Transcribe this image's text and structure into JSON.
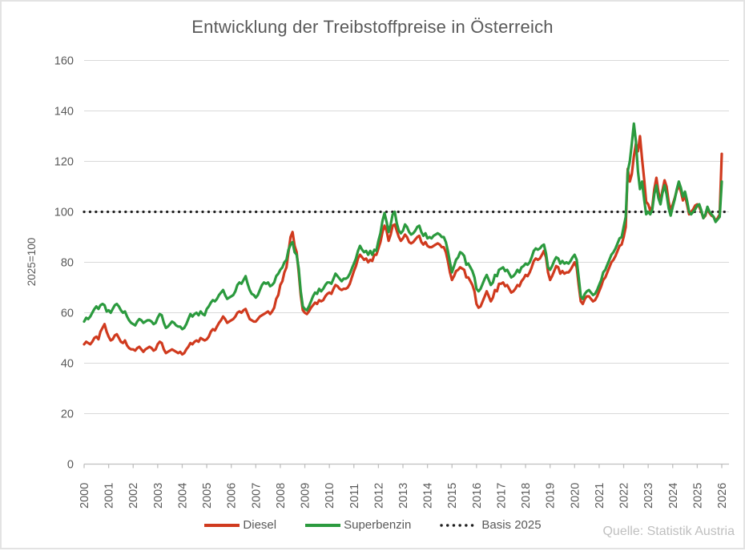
{
  "title": "Entwicklung der Treibstoffpreise in Österreich",
  "source_caption": "Quelle: Statistik Austria",
  "colors": {
    "diesel_red": "#d03a1e",
    "superbenzin_green": "#2b9a3e",
    "basis_black": "#1f1f1f",
    "gridline": "#d9d9d9",
    "axis_line": "#bfbfbf",
    "text_gray": "#595959",
    "source_gray": "#bfbfbf",
    "background": "#ffffff",
    "frame_border": "#e3e3e3"
  },
  "legend": {
    "items": [
      {
        "label": "Diesel"
      },
      {
        "label": "Superbenzin"
      },
      {
        "label": "Basis 2025"
      }
    ]
  },
  "chart_data": {
    "type": "line",
    "title": "Entwicklung der Treibstoffpreise in Österreich",
    "ylabel": "2025=100",
    "xlabel": "",
    "ylim": [
      0,
      160
    ],
    "yticks": [
      0,
      20,
      40,
      60,
      80,
      100,
      120,
      140,
      160
    ],
    "xticks": [
      2000,
      2001,
      2002,
      2003,
      2004,
      2005,
      2006,
      2007,
      2008,
      2009,
      2010,
      2011,
      2012,
      2013,
      2014,
      2015,
      2016,
      2017,
      2018,
      2019,
      2020,
      2021,
      2022,
      2023,
      2024,
      2025,
      2026
    ],
    "x_resolution": "monthly, Jan 2000 to Jan 2026",
    "grid": "horizontal",
    "legend_position": "bottom",
    "series": [
      {
        "name": "Diesel",
        "color": "#d03a1e",
        "values": [
          47.5,
          48.5,
          48,
          47.5,
          48.5,
          50,
          50.5,
          49.5,
          52.5,
          54,
          55.5,
          52.5,
          50.5,
          49,
          49.5,
          51,
          51.5,
          50,
          48.5,
          48,
          49,
          47,
          46,
          45.5,
          45.5,
          45,
          46,
          46.5,
          45.5,
          44.5,
          45.5,
          46,
          46.5,
          46,
          45,
          45.5,
          47.5,
          48.5,
          48,
          45.5,
          44,
          44.5,
          45,
          45.5,
          45,
          44.5,
          44,
          44.5,
          43.5,
          44,
          45.5,
          46.5,
          48,
          47.5,
          48.5,
          49,
          48.5,
          50,
          49.5,
          49,
          49.5,
          50.5,
          52.5,
          53.5,
          53,
          54.5,
          56,
          57,
          58.5,
          57.5,
          56,
          56.5,
          57,
          57.5,
          58.5,
          60,
          60.5,
          60,
          61,
          61.5,
          59.5,
          57.5,
          57,
          56.5,
          56.5,
          57.5,
          58.5,
          59,
          59.5,
          60,
          60.5,
          59.5,
          60.5,
          62,
          65.5,
          67,
          71,
          72.5,
          76,
          78,
          84,
          90,
          92,
          86.5,
          84,
          76,
          67,
          61,
          60,
          59.5,
          60.5,
          62,
          63,
          64,
          63.5,
          65,
          64.5,
          65,
          66.5,
          67.5,
          68,
          67.5,
          69.5,
          71,
          70.5,
          69.5,
          69,
          69.5,
          69.5,
          70,
          71.5,
          74,
          76.5,
          78.5,
          81.5,
          83,
          82,
          81,
          81.5,
          80,
          81,
          80.5,
          83,
          83,
          85.5,
          88,
          92,
          94.5,
          92.5,
          88.5,
          91,
          94.5,
          95,
          92.5,
          90,
          88.5,
          89.5,
          91,
          90,
          88,
          87.5,
          88,
          89,
          90,
          90.5,
          88,
          87,
          88,
          86.5,
          86,
          86,
          86.5,
          87,
          87.5,
          87,
          86,
          86,
          84,
          80.5,
          76,
          73,
          74.5,
          76.5,
          77,
          78,
          77.5,
          77,
          74,
          74,
          72.5,
          71,
          68.5,
          63.5,
          62,
          62.5,
          64.5,
          66.5,
          68.5,
          66.5,
          64.5,
          66,
          69,
          68.5,
          71.5,
          71.5,
          72,
          70.5,
          71,
          69.5,
          68,
          68.5,
          69.5,
          71,
          70.5,
          72.5,
          73.5,
          75,
          74.5,
          76,
          78,
          80.5,
          81.5,
          81,
          81.5,
          83,
          84.5,
          82,
          76,
          73,
          74.5,
          76.5,
          78.5,
          78,
          75.5,
          76.5,
          75.5,
          76,
          76,
          77,
          78.5,
          80,
          78,
          71,
          64.5,
          63.5,
          65.5,
          66.5,
          66.5,
          65.5,
          64.5,
          65,
          66.5,
          68.5,
          70.5,
          73,
          74,
          76,
          78,
          80,
          81,
          82.5,
          84.5,
          86.5,
          87,
          90,
          94,
          117,
          112,
          115,
          122,
          127,
          124,
          130,
          121,
          113,
          104,
          103,
          100.5,
          102,
          109,
          113.5,
          108,
          104,
          108.5,
          112.5,
          110,
          104,
          100.5,
          103,
          105.5,
          108.5,
          110.5,
          108,
          104.5,
          106.5,
          103,
          99,
          100,
          101,
          102.5,
          103,
          102,
          100,
          97.5,
          98.5,
          101.5,
          99.5,
          98.5,
          98,
          96.5,
          97.5,
          99,
          123
        ]
      },
      {
        "name": "Superbenzin",
        "color": "#2b9a3e",
        "values": [
          56.5,
          58,
          57.5,
          58.5,
          60,
          61.5,
          62.5,
          61.5,
          63,
          63.5,
          63,
          60.5,
          61,
          60,
          61.5,
          63,
          63.5,
          62.5,
          61,
          60,
          60.5,
          58.5,
          57,
          56,
          55.5,
          55,
          56.5,
          57.5,
          57,
          56,
          56.5,
          57,
          57,
          56.5,
          55.5,
          56,
          58,
          59.5,
          59,
          56,
          54,
          54.5,
          55.5,
          56.5,
          56,
          55,
          54.5,
          54.5,
          53.5,
          54,
          55.5,
          57.5,
          59.5,
          58.5,
          59.5,
          60,
          59,
          60.5,
          59.5,
          59,
          61.5,
          62.5,
          64,
          65,
          64.5,
          65.5,
          67,
          68,
          69,
          67,
          65.5,
          66,
          66.5,
          67,
          68.5,
          71,
          72,
          71.5,
          73,
          74.5,
          71.5,
          69,
          67.5,
          67,
          66,
          67,
          69,
          71,
          72,
          71.5,
          72,
          70.5,
          71,
          72,
          74.5,
          75.5,
          77,
          78,
          80,
          81,
          85,
          87,
          88,
          84,
          83,
          77.5,
          68.5,
          62.5,
          61.5,
          61,
          62.5,
          64.5,
          66.5,
          68,
          67.5,
          69.5,
          68.5,
          69.5,
          71,
          72,
          72,
          71.5,
          73.5,
          75.5,
          74.5,
          73.5,
          72.5,
          73.5,
          73.5,
          74,
          75.5,
          77.5,
          79.5,
          81.5,
          84.5,
          86.5,
          85,
          84,
          84.5,
          83,
          84.5,
          83,
          85,
          84.5,
          88.5,
          91.5,
          96.5,
          99.5,
          96,
          92,
          95,
          99,
          100,
          95.5,
          92.5,
          91.5,
          92.5,
          95,
          94,
          92,
          91,
          91.5,
          92.5,
          94,
          94.5,
          92,
          90.5,
          91.5,
          89.5,
          90,
          89.5,
          90.5,
          91,
          91.5,
          91,
          90,
          90,
          88,
          84.5,
          80,
          76,
          78.5,
          81,
          82,
          84,
          83.5,
          82.5,
          79,
          79.5,
          78,
          76.5,
          74,
          69.5,
          68.5,
          69.5,
          71.5,
          73.5,
          75,
          73,
          71,
          72,
          75,
          74.5,
          77,
          77.5,
          78,
          76.5,
          77,
          75.5,
          74,
          74.5,
          75.5,
          77,
          76,
          78,
          78.5,
          79.5,
          79,
          80,
          82,
          84.5,
          85.5,
          85,
          85.5,
          86.5,
          87,
          83.5,
          78,
          77,
          78.5,
          80.5,
          82,
          81.5,
          79.5,
          80.5,
          79.5,
          80,
          79.5,
          80.5,
          82,
          83,
          81,
          74,
          66.5,
          65.5,
          67.5,
          68.5,
          69,
          68,
          67,
          67.5,
          69,
          71,
          73,
          76,
          77,
          79,
          81,
          83,
          84,
          85.5,
          87.5,
          89.5,
          90,
          94,
          98,
          116,
          120,
          127,
          135,
          128,
          116,
          109,
          112,
          105,
          99,
          100,
          99,
          101,
          107,
          110.5,
          105.5,
          103,
          107.5,
          110.5,
          107,
          101.5,
          98.5,
          102,
          105,
          109,
          112,
          109.5,
          106,
          108,
          104.5,
          100,
          99,
          100,
          101,
          102.5,
          103,
          100.5,
          97.5,
          99,
          102,
          100,
          99,
          98,
          96,
          97,
          98,
          112
        ]
      },
      {
        "name": "Basis 2025",
        "color": "#1f1f1f",
        "style": "dotted",
        "constant_value": 100
      }
    ]
  }
}
